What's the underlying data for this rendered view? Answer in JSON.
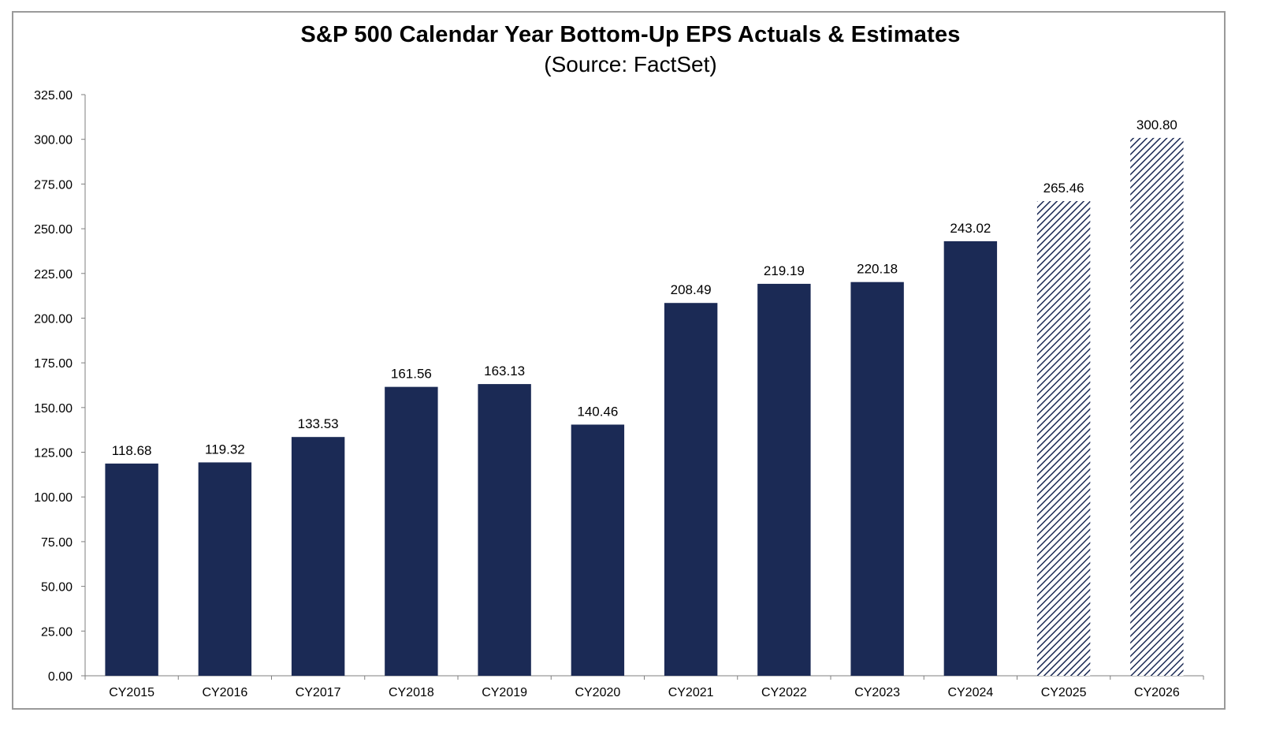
{
  "chart_data": {
    "type": "bar",
    "title": "S&P 500 Calendar Year Bottom-Up EPS Actuals & Estimates",
    "subtitle": "(Source: FactSet)",
    "xlabel": "",
    "ylabel": "",
    "ylim": [
      0,
      325
    ],
    "yticks": [
      "0.00",
      "25.00",
      "50.00",
      "75.00",
      "100.00",
      "125.00",
      "150.00",
      "175.00",
      "200.00",
      "225.00",
      "250.00",
      "275.00",
      "300.00",
      "325.00"
    ],
    "categories": [
      "CY2015",
      "CY2016",
      "CY2017",
      "CY2018",
      "CY2019",
      "CY2020",
      "CY2021",
      "CY2022",
      "CY2023",
      "CY2024",
      "CY2025",
      "CY2026"
    ],
    "values": [
      118.68,
      119.32,
      133.53,
      161.56,
      163.13,
      140.46,
      208.49,
      219.19,
      220.18,
      243.02,
      265.46,
      300.8
    ],
    "data_labels": [
      "118.68",
      "119.32",
      "133.53",
      "161.56",
      "163.13",
      "140.46",
      "208.49",
      "219.19",
      "220.18",
      "243.02",
      "265.46",
      "300.80"
    ],
    "bar_style": [
      "solid",
      "solid",
      "solid",
      "solid",
      "solid",
      "solid",
      "solid",
      "solid",
      "solid",
      "solid",
      "hatched",
      "hatched"
    ],
    "grid": false,
    "legend": "none",
    "colors": {
      "bar": "#1b2a55",
      "hatch": "#1b2a55",
      "axis": "#7f7f7f"
    }
  }
}
